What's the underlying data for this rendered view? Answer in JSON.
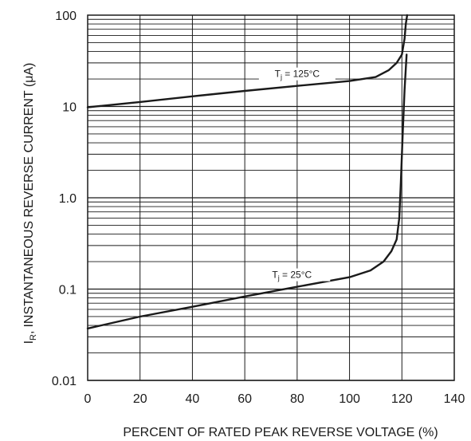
{
  "chart_data": {
    "type": "line",
    "title": "",
    "xlabel": "PERCENT OF RATED PEAK REVERSE VOLTAGE (%)",
    "ylabel": "INSTANTANEOUS REVERSE CURRENT (μA)",
    "ylabel_prefix": "I",
    "ylabel_sub": "R",
    "ylabel_sep": ",",
    "xlim": [
      0,
      140
    ],
    "ylim": [
      0.01,
      100
    ],
    "yscale": "log",
    "grid": true,
    "x_ticks": [
      0,
      20,
      40,
      60,
      80,
      100,
      120,
      140
    ],
    "x_tick_labels": [
      "0",
      "20",
      "40",
      "60",
      "80",
      "100",
      "120",
      "140"
    ],
    "y_ticks": [
      0.01,
      0.1,
      1,
      10,
      100
    ],
    "y_tick_labels": [
      "0.01",
      "0.1",
      "1.0",
      "10",
      "100"
    ],
    "series": [
      {
        "name": "Tj = 125°C",
        "label_prefix": "T",
        "label_sub": "j",
        "label_suffix": " = 125°C",
        "x": [
          0,
          20,
          40,
          60,
          80,
          100,
          110,
          115,
          118,
          120,
          121,
          121.5,
          122
        ],
        "y": [
          9.8,
          11.2,
          12.9,
          14.8,
          16.8,
          19,
          21,
          25,
          30,
          37,
          55,
          80,
          100
        ]
      },
      {
        "name": "Tj = 25°C",
        "label_prefix": "T",
        "label_sub": "j",
        "label_suffix": " = 25°C",
        "x": [
          0,
          20,
          40,
          60,
          80,
          100,
          108,
          113,
          116,
          118,
          119,
          119.6,
          120.3,
          121,
          121.8
        ],
        "y": [
          0.037,
          0.05,
          0.064,
          0.083,
          0.106,
          0.135,
          0.16,
          0.2,
          0.26,
          0.35,
          0.6,
          1.5,
          5,
          15,
          37
        ]
      }
    ]
  }
}
